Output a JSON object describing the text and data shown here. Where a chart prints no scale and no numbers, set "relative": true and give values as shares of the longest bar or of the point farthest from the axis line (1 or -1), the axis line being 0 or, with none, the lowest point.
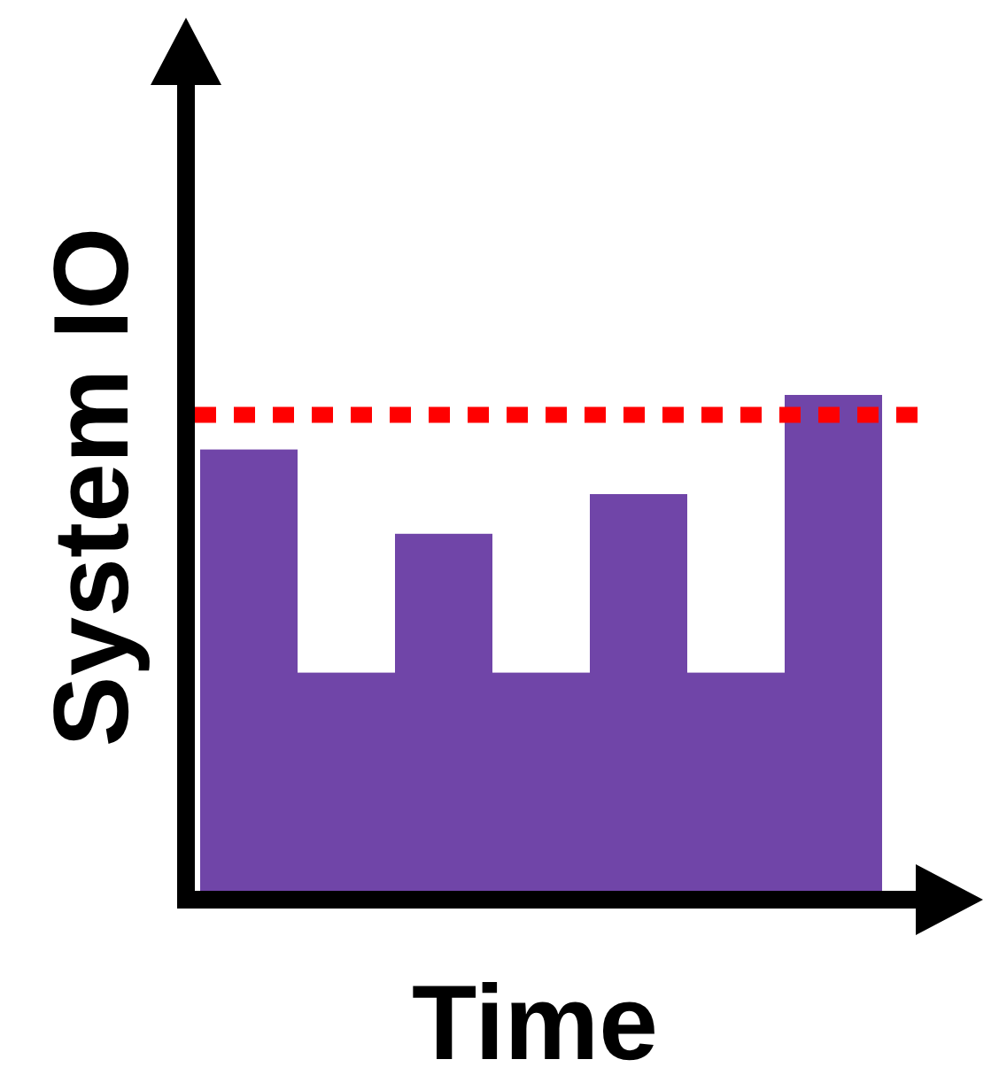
{
  "chart_data": {
    "type": "bar",
    "relative": true,
    "xlabel": "Time",
    "ylabel": "System IO",
    "color": "#7045a8",
    "categories": [
      null,
      null,
      null,
      null,
      null,
      null,
      null
    ],
    "values": [
      0.89,
      0.44,
      0.72,
      0.44,
      0.8,
      0.44,
      1
    ],
    "ref_lines": [
      {
        "axis": "y",
        "value": 0.96,
        "color": "#ff0000",
        "line_style": "dotted"
      }
    ]
  }
}
